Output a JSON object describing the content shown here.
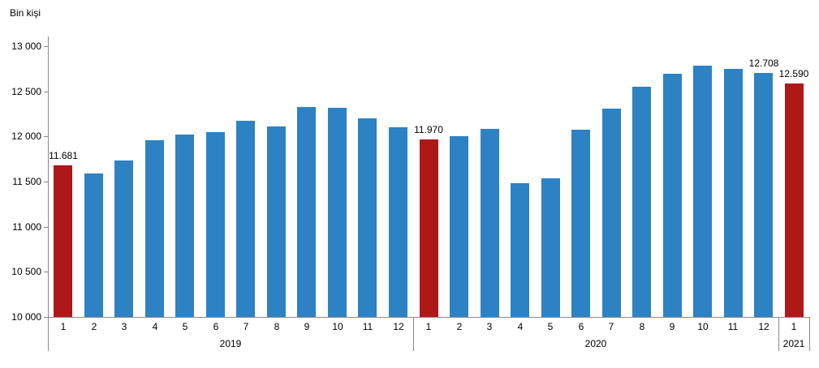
{
  "unit_label": "Bin kişi",
  "colors": {
    "bar_blue": "#2D82C4",
    "bar_red": "#AE1917",
    "axis_line": "#898989",
    "text": "#000000"
  },
  "chart_data": {
    "type": "bar",
    "title": "",
    "ylabel": "Bin kişi",
    "xlabel": "",
    "ylim": [
      10000,
      13000
    ],
    "y_tick_interval": 500,
    "y_tick_labels": [
      "13 000",
      "12 500",
      "12 000",
      "11 500",
      "11 000",
      "10 500",
      "10 000"
    ],
    "grid": "off",
    "legend": "none",
    "groups": [
      {
        "year": "2019",
        "months": [
          "1",
          "2",
          "3",
          "4",
          "5",
          "6",
          "7",
          "8",
          "9",
          "10",
          "11",
          "12"
        ],
        "values": [
          11681,
          11590,
          11735,
          11955,
          12025,
          12045,
          12170,
          12115,
          12330,
          12320,
          12205,
          12105
        ]
      },
      {
        "year": "2020",
        "months": [
          "1",
          "2",
          "3",
          "4",
          "5",
          "6",
          "7",
          "8",
          "9",
          "10",
          "11",
          "12"
        ],
        "values": [
          11970,
          12005,
          12085,
          11480,
          11540,
          12075,
          12310,
          12555,
          12695,
          12785,
          12745,
          12708
        ]
      },
      {
        "year": "2021",
        "months": [
          "1"
        ],
        "values": [
          12590
        ]
      }
    ],
    "highlighted_bars": [
      {
        "group_index": 0,
        "month_index": 0
      },
      {
        "group_index": 1,
        "month_index": 0
      },
      {
        "group_index": 2,
        "month_index": 0
      }
    ],
    "data_labels": [
      {
        "group_index": 0,
        "month_index": 0,
        "text": "11.681"
      },
      {
        "group_index": 1,
        "month_index": 0,
        "text": "11.970"
      },
      {
        "group_index": 1,
        "month_index": 11,
        "text": "12.708"
      },
      {
        "group_index": 2,
        "month_index": 0,
        "text": "12.590"
      }
    ]
  }
}
